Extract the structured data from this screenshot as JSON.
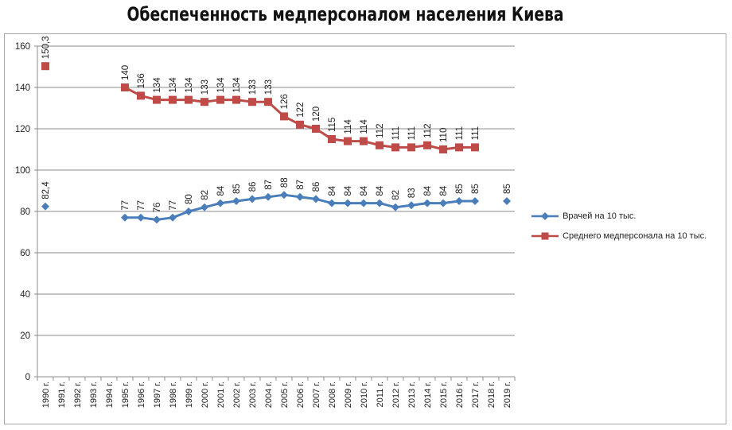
{
  "chart_data": {
    "type": "line",
    "title": "Обеспеченность медперсоналом населения Киева",
    "xlabel": "",
    "ylabel": "",
    "ylim": [
      0,
      160
    ],
    "yticks": [
      0,
      20,
      40,
      60,
      80,
      100,
      120,
      140,
      160
    ],
    "grid": true,
    "legend_position": "right",
    "categories": [
      "1990 г.",
      "1991 г.",
      "1992 г.",
      "1993 г.",
      "1994 г.",
      "1995 г.",
      "1996 г.",
      "1997 г.",
      "1998 г.",
      "1999 г.",
      "2000 г.",
      "2001 г.",
      "2002 г.",
      "2003 г.",
      "2004 г.",
      "2005 г.",
      "2006 г.",
      "2007 г.",
      "2008 г.",
      "2009 г.",
      "2010 г.",
      "2011 г.",
      "2012 г.",
      "2013 г.",
      "2014 г.",
      "2015 г.",
      "2016 г.",
      "2017 г.",
      "2018 г.",
      "2019 г."
    ],
    "series": [
      {
        "name": "Врачей на 10 тыс.",
        "color": "#4a7ebb",
        "marker": "diamond",
        "values": [
          82.4,
          null,
          null,
          null,
          null,
          77,
          77,
          76,
          77,
          80,
          82,
          84,
          85,
          86,
          87,
          88,
          87,
          86,
          84,
          84,
          84,
          84,
          82,
          83,
          84,
          84,
          85,
          85,
          null,
          85
        ],
        "labels": [
          "82,4",
          "",
          "",
          "",
          "",
          "77",
          "77",
          "76",
          "77",
          "80",
          "82",
          "84",
          "85",
          "86",
          "87",
          "88",
          "87",
          "86",
          "84",
          "84",
          "84",
          "84",
          "82",
          "83",
          "84",
          "84",
          "85",
          "85",
          "",
          "85"
        ]
      },
      {
        "name": "Среднего  медперсонала на 10 тыс.",
        "color": "#be4b48",
        "marker": "square",
        "values": [
          150.3,
          null,
          null,
          null,
          null,
          140,
          136,
          134,
          134,
          134,
          133,
          134,
          134,
          133,
          133,
          126,
          122,
          120,
          115,
          114,
          114,
          112,
          111,
          111,
          112,
          110,
          111,
          111,
          null,
          null
        ],
        "labels": [
          "150,3",
          "",
          "",
          "",
          "",
          "140",
          "136",
          "134",
          "134",
          "134",
          "133",
          "134",
          "134",
          "133",
          "133",
          "126",
          "122",
          "120",
          "115",
          "114",
          "114",
          "112",
          "111",
          "111",
          "112",
          "110",
          "111",
          "111",
          "",
          ""
        ]
      }
    ]
  }
}
